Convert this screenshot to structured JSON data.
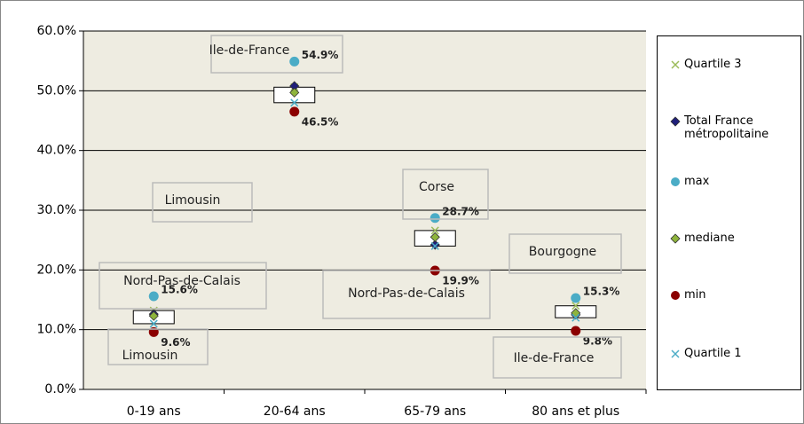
{
  "chart_data": {
    "type": "box",
    "categories": [
      "0-19 ans",
      "20-64 ans",
      "65-79 ans",
      "80 ans et plus"
    ],
    "ylim": [
      0,
      60
    ],
    "yticks": [
      {
        "value": 0,
        "label": "0.0%"
      },
      {
        "value": 10,
        "label": "10.0%"
      },
      {
        "value": 20,
        "label": "20.0%"
      },
      {
        "value": 30,
        "label": "30.0%"
      },
      {
        "value": 40,
        "label": "40.0%"
      },
      {
        "value": 50,
        "label": "50.0%"
      },
      {
        "value": 60,
        "label": "60.0%"
      }
    ],
    "grid": true,
    "legend": "right",
    "series": [
      {
        "name": "Quartile 3",
        "color": "#9bbb59",
        "marker": "x",
        "values": [
          13.2,
          50.6,
          26.6,
          14.0
        ]
      },
      {
        "name": "Total France métropolitaine",
        "color": "#1f1f7a",
        "marker": "diamond",
        "values": [
          12.6,
          50.8,
          24.2,
          12.5
        ]
      },
      {
        "name": "max",
        "color": "#4bacc6",
        "marker": "circle",
        "values": [
          15.6,
          54.9,
          28.7,
          15.3
        ],
        "value_labels": [
          "15.6%",
          "54.9%",
          "28.7%",
          "15.3%"
        ]
      },
      {
        "name": "mediane",
        "color": "#8eb43c",
        "marker": "diamond",
        "values": [
          12.3,
          49.7,
          25.5,
          12.8
        ]
      },
      {
        "name": "min",
        "color": "#8b0000",
        "marker": "circle",
        "values": [
          9.6,
          46.5,
          19.9,
          9.8
        ],
        "value_labels": [
          "9.6%",
          "46.5%",
          "19.9%",
          "9.8%"
        ]
      },
      {
        "name": "Quartile 1",
        "color": "#4bacc6",
        "marker": "x",
        "values": [
          11.0,
          48.0,
          24.0,
          12.0
        ]
      }
    ],
    "annotations": [
      "Ile-de-France",
      "Limousin",
      "Nord-Pas-de-Calais",
      "Limousin",
      "Corse",
      "Nord-Pas-de-Calais",
      "Bourgogne",
      "Ile-de-France"
    ]
  }
}
